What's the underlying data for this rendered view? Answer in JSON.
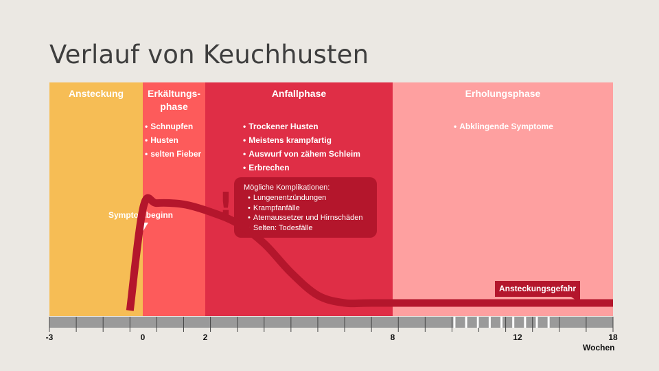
{
  "title": "Verlauf von Keuchhusten",
  "colors": {
    "ansteckung": "#f6bd55",
    "erkaeltung": "#fd5b5b",
    "anfall": "#df2e46",
    "erholung": "#fea0a0",
    "curve": "#b4162c",
    "axis": "#9a9a9a"
  },
  "phases": [
    {
      "id": "ansteckung",
      "title": "Ansteckung",
      "title_line2": "",
      "bullets": []
    },
    {
      "id": "erkaeltung",
      "title": "Erkältungs-",
      "title_line2": "phase",
      "bullets": [
        "Schnupfen",
        "Husten",
        "selten Fieber"
      ]
    },
    {
      "id": "anfall",
      "title": "Anfallphase",
      "title_line2": "",
      "bullets": [
        "Trockener Husten",
        "Meistens krampfartig",
        "Auswurf von zähem Schleim",
        "Erbrechen"
      ]
    },
    {
      "id": "erholung",
      "title": "Erholungsphase",
      "title_line2": "",
      "bullets": [
        "Abklingende Symptome"
      ]
    }
  ],
  "complications": {
    "title": "Mögliche Komplikationen:",
    "items": [
      "Lungenentzündungen",
      "Krampfanfälle",
      "Atemaussetzer und Hirnschäden",
      "Selten: Todesfälle"
    ]
  },
  "symptom_onset": {
    "label": "Symptombeginn",
    "week": 0
  },
  "contagion": {
    "label": "Ansteckungsgefahr",
    "until_week": 12
  },
  "chart_data": {
    "type": "area",
    "x_unit": "Wochen",
    "xlim": [
      -3,
      18
    ],
    "tick_labels": [
      "-3",
      "0",
      "2",
      "8",
      "12",
      "18"
    ],
    "phase_boundaries_weeks": [
      -3,
      0,
      2,
      8,
      18
    ],
    "symptom_intensity": {
      "x": [
        0,
        0.5,
        1,
        2,
        3,
        4,
        5,
        6,
        7,
        8,
        9,
        12,
        18
      ],
      "y": [
        0,
        0.82,
        0.85,
        0.84,
        0.78,
        0.69,
        0.53,
        0.3,
        0.12,
        0.06,
        0.06,
        0.06,
        0.06
      ]
    },
    "grid": false
  }
}
